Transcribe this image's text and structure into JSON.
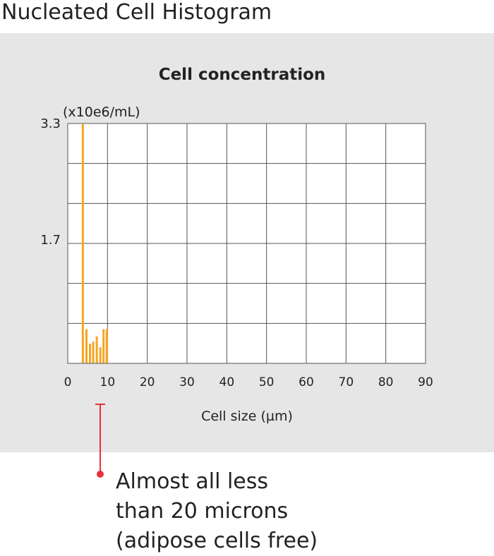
{
  "page_title": "Nucleated Cell Histogram",
  "chart_data": {
    "type": "bar",
    "title": "Cell concentration",
    "ylabel": "(x10e6/mL)",
    "xlabel": "Cell size (µm)",
    "xlim": [
      0,
      90
    ],
    "ylim": [
      0,
      3.3
    ],
    "x_ticks": [
      "0",
      "10",
      "20",
      "30",
      "40",
      "50",
      "60",
      "70",
      "80",
      "90"
    ],
    "y_ticks": [
      {
        "value": 1.7,
        "label": "1.7"
      },
      {
        "value": 3.3,
        "label": "3.3"
      }
    ],
    "grid": true,
    "bar_color": "#f5a623",
    "x": [
      3.8,
      4.7,
      5.6,
      6.4,
      7.3,
      8.2,
      9.0,
      9.8
    ],
    "values": [
      3.3,
      0.47,
      0.27,
      0.3,
      0.37,
      0.22,
      0.47,
      0.47
    ]
  },
  "annotation": {
    "lines": [
      "Almost all less",
      "than 20 microns",
      "(adipose cells free)"
    ],
    "marker_color": "#e8303a"
  }
}
